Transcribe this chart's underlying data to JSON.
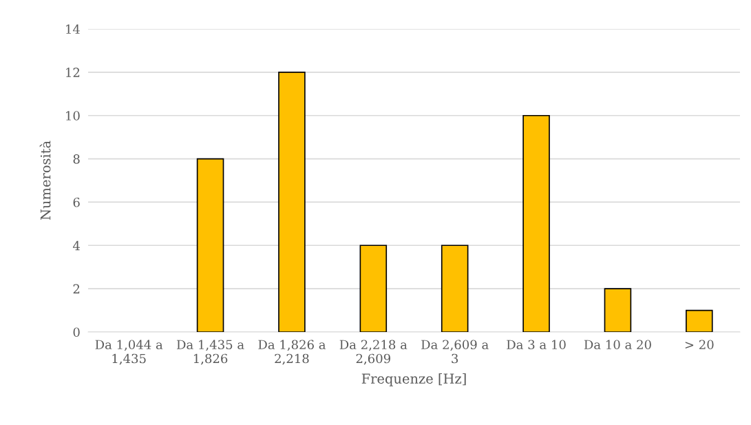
{
  "chart_data": {
    "type": "bar",
    "xlabel": "Frequenze [Hz]",
    "ylabel": "Numerosità",
    "categories": [
      "Da 1,044 a 1,435",
      "Da 1,435 a 1,826",
      "Da 1,826 a 2,218",
      "Da 2,218 a 2,609",
      "Da 2,609 a 3",
      "Da 3 a 10",
      "Da 10 a 20",
      "> 20"
    ],
    "values": [
      0,
      8,
      12,
      4,
      4,
      10,
      2,
      1
    ],
    "color": "#ffc000",
    "ylim": [
      0,
      14
    ],
    "yticks": [
      0,
      2,
      4,
      6,
      8,
      10,
      12,
      14
    ],
    "grid": "y"
  }
}
